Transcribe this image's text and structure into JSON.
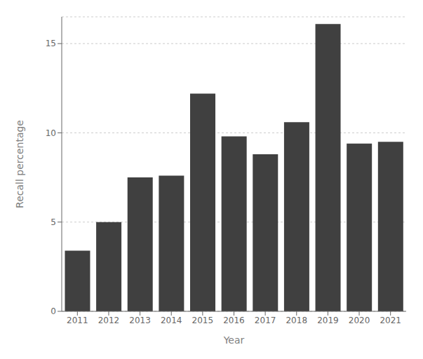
{
  "chart_data": {
    "type": "bar",
    "categories": [
      "2011",
      "2012",
      "2013",
      "2014",
      "2015",
      "2016",
      "2017",
      "2018",
      "2019",
      "2020",
      "2021"
    ],
    "values": [
      3.4,
      5.0,
      7.5,
      7.6,
      12.2,
      9.8,
      8.8,
      10.6,
      16.1,
      9.4,
      9.5
    ],
    "color": "#404040",
    "xlabel": "Year",
    "ylabel": "Recall percentage",
    "ylim": [
      0,
      16.5
    ],
    "yticks": [
      0,
      5,
      10,
      15
    ],
    "grid": true
  }
}
